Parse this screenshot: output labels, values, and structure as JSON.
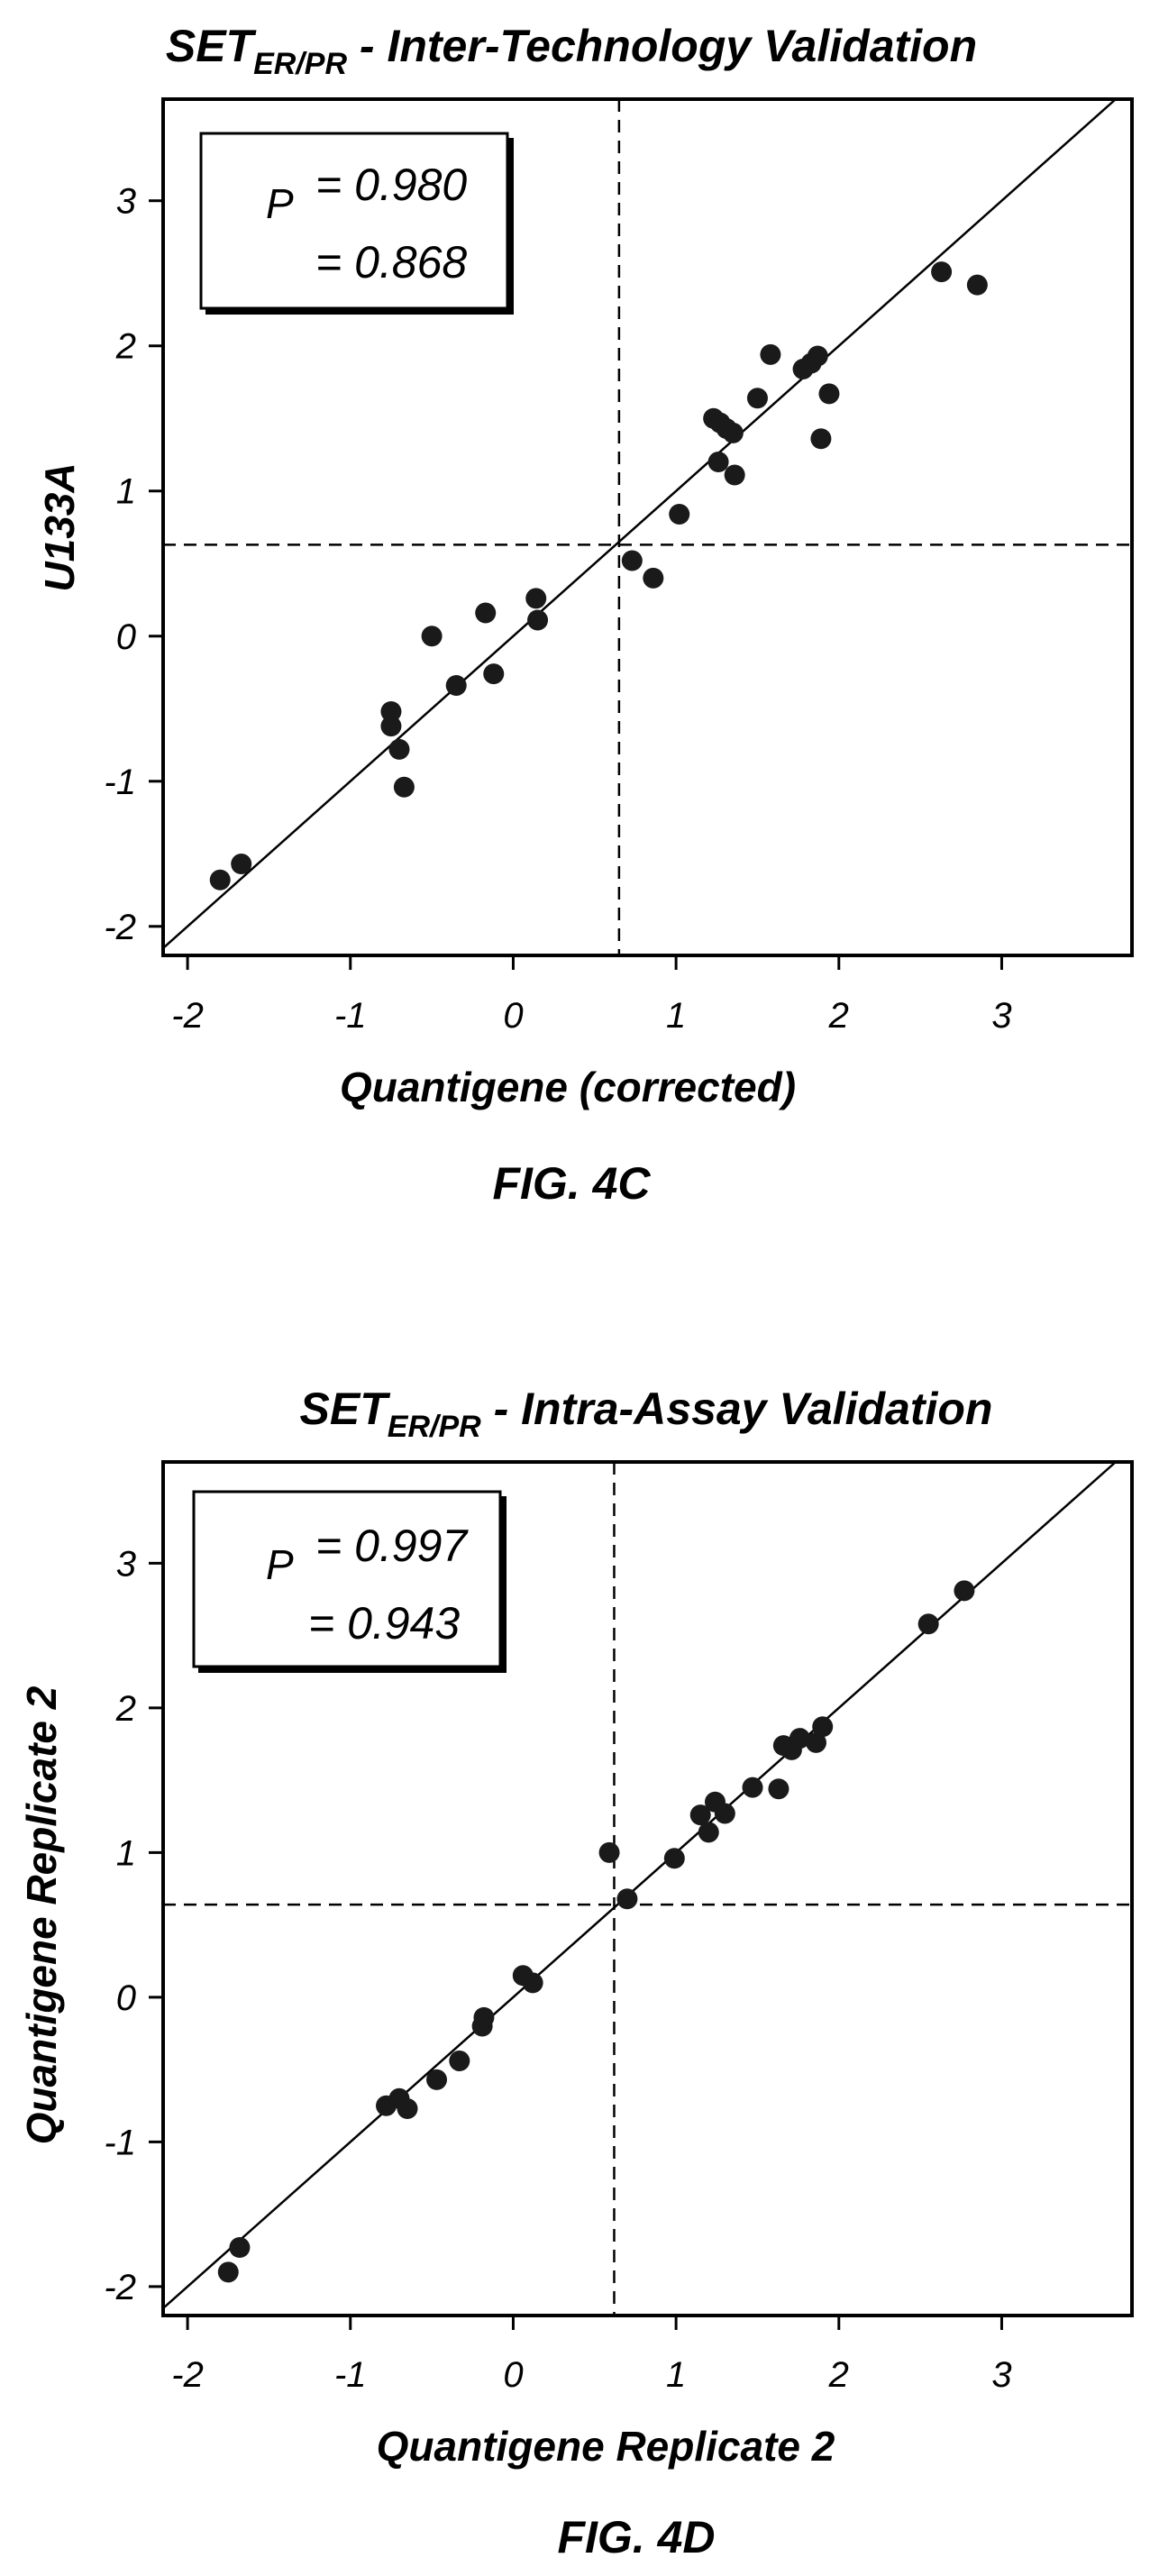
{
  "chart_data": [
    {
      "type": "scatter",
      "title_main": "SET",
      "title_sub": "ER/PR",
      "title_rest": " - Inter-Technology Validation",
      "xlabel": "Quantigene (corrected)",
      "ylabel": "U133A",
      "figure_label": "FIG. 4C",
      "xlim": [
        -2.15,
        3.8
      ],
      "ylim": [
        -2.2,
        3.7
      ],
      "xticks": [
        -2,
        -1,
        0,
        1,
        2,
        3
      ],
      "yticks": [
        -2,
        -1,
        0,
        1,
        2,
        3
      ],
      "xtick_labels": [
        "-2",
        "-1",
        "0",
        "1",
        "2",
        "3"
      ],
      "ytick_labels": [
        "-2",
        "-1",
        "0",
        "1",
        "2",
        "3"
      ],
      "grid": false,
      "reference_line": "y = x",
      "dashed_vline_x": 0.65,
      "dashed_hline_y": 0.63,
      "stats_box": {
        "symbol": "P",
        "line1": "= 0.980",
        "line2": "= 0.868",
        "position": "top-left"
      },
      "points": [
        {
          "x": -1.8,
          "y": -1.68
        },
        {
          "x": -1.67,
          "y": -1.57
        },
        {
          "x": -0.75,
          "y": -0.52
        },
        {
          "x": -0.75,
          "y": -0.62
        },
        {
          "x": -0.7,
          "y": -0.78
        },
        {
          "x": -0.67,
          "y": -1.04
        },
        {
          "x": -0.5,
          "y": 0.0
        },
        {
          "x": -0.35,
          "y": -0.34
        },
        {
          "x": -0.17,
          "y": 0.16
        },
        {
          "x": -0.12,
          "y": -0.26
        },
        {
          "x": 0.14,
          "y": 0.26
        },
        {
          "x": 0.15,
          "y": 0.11
        },
        {
          "x": 0.73,
          "y": 0.52
        },
        {
          "x": 0.86,
          "y": 0.4
        },
        {
          "x": 1.02,
          "y": 0.84
        },
        {
          "x": 1.23,
          "y": 1.5
        },
        {
          "x": 1.27,
          "y": 1.47
        },
        {
          "x": 1.31,
          "y": 1.43
        },
        {
          "x": 1.35,
          "y": 1.4
        },
        {
          "x": 1.26,
          "y": 1.2
        },
        {
          "x": 1.36,
          "y": 1.11
        },
        {
          "x": 1.5,
          "y": 1.64
        },
        {
          "x": 1.58,
          "y": 1.94
        },
        {
          "x": 1.78,
          "y": 1.84
        },
        {
          "x": 1.83,
          "y": 1.88
        },
        {
          "x": 1.87,
          "y": 1.93
        },
        {
          "x": 1.89,
          "y": 1.36
        },
        {
          "x": 1.94,
          "y": 1.67
        },
        {
          "x": 2.63,
          "y": 2.51
        },
        {
          "x": 2.85,
          "y": 2.42
        }
      ]
    },
    {
      "type": "scatter",
      "title_main": "SET",
      "title_sub": "ER/PR",
      "title_rest": " - Intra-Assay Validation",
      "xlabel": "Quantigene Replicate 2",
      "ylabel": "Quantigene Replicate 2",
      "figure_label": "FIG. 4D",
      "xlim": [
        -2.15,
        3.8
      ],
      "ylim": [
        -2.2,
        3.7
      ],
      "xticks": [
        -2,
        -1,
        0,
        1,
        2,
        3
      ],
      "yticks": [
        -2,
        -1,
        0,
        1,
        2,
        3
      ],
      "xtick_labels": [
        "-2",
        "-1",
        "0",
        "1",
        "2",
        "3"
      ],
      "ytick_labels": [
        "-2",
        "-1",
        "0",
        "1",
        "2",
        "3"
      ],
      "grid": false,
      "reference_line": "y = x",
      "dashed_vline_x": 0.62,
      "dashed_hline_y": 0.64,
      "stats_box": {
        "symbol": "P",
        "line1": "= 0.997",
        "line2": "= 0.943",
        "position": "top-left"
      },
      "points": [
        {
          "x": -1.75,
          "y": -1.9
        },
        {
          "x": -1.68,
          "y": -1.73
        },
        {
          "x": -0.78,
          "y": -0.75
        },
        {
          "x": -0.7,
          "y": -0.7
        },
        {
          "x": -0.65,
          "y": -0.77
        },
        {
          "x": -0.47,
          "y": -0.57
        },
        {
          "x": -0.33,
          "y": -0.44
        },
        {
          "x": -0.19,
          "y": -0.2
        },
        {
          "x": -0.18,
          "y": -0.14
        },
        {
          "x": 0.06,
          "y": 0.15
        },
        {
          "x": 0.12,
          "y": 0.1
        },
        {
          "x": 0.59,
          "y": 1.0
        },
        {
          "x": 0.7,
          "y": 0.68
        },
        {
          "x": 0.99,
          "y": 0.96
        },
        {
          "x": 1.15,
          "y": 1.26
        },
        {
          "x": 1.2,
          "y": 1.14
        },
        {
          "x": 1.24,
          "y": 1.35
        },
        {
          "x": 1.3,
          "y": 1.27
        },
        {
          "x": 1.47,
          "y": 1.45
        },
        {
          "x": 1.63,
          "y": 1.44
        },
        {
          "x": 1.66,
          "y": 1.74
        },
        {
          "x": 1.71,
          "y": 1.71
        },
        {
          "x": 1.76,
          "y": 1.79
        },
        {
          "x": 1.86,
          "y": 1.76
        },
        {
          "x": 1.9,
          "y": 1.87
        },
        {
          "x": 2.55,
          "y": 2.58
        },
        {
          "x": 2.77,
          "y": 2.81
        }
      ]
    }
  ]
}
